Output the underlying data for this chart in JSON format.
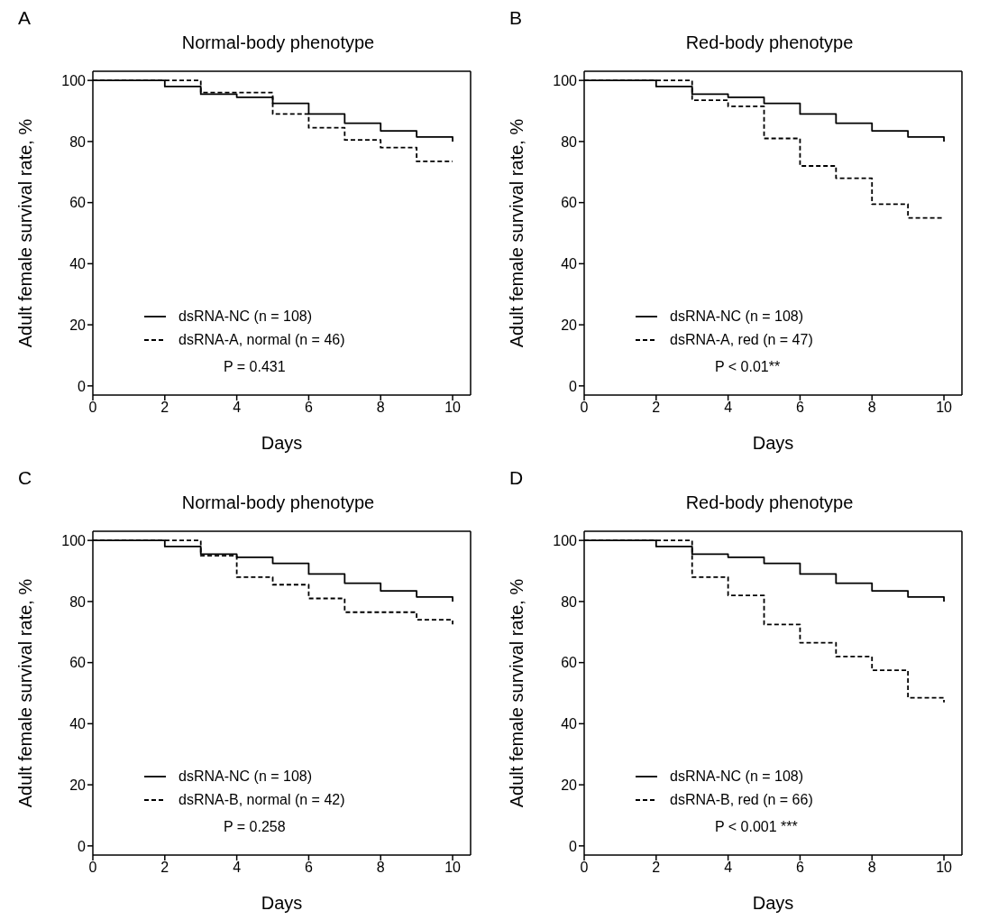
{
  "chart_data": [
    {
      "type": "step",
      "title": "Normal-body phenotype",
      "xlabel": "Days",
      "ylabel": "Adult female survival rate, %",
      "annotations": [
        "A",
        "P = 0.431"
      ],
      "x": [
        0,
        1,
        2,
        3,
        4,
        5,
        6,
        7,
        8,
        9,
        10
      ],
      "xlim": [
        0,
        10.5
      ],
      "xticks": [
        0,
        2,
        4,
        6,
        8,
        10
      ],
      "ylim": [
        -3,
        103
      ],
      "yticks": [
        0,
        20,
        40,
        60,
        80,
        100
      ],
      "grid": false,
      "legend": "bottom",
      "marker": "none",
      "series": [
        {
          "name": "dsRNA-NC (n = 108)",
          "color": "#000000",
          "line_style": "solid",
          "values": [
            100,
            100,
            98,
            95.5,
            94.5,
            92.5,
            89,
            86,
            83.5,
            81.5,
            80
          ]
        },
        {
          "name": "dsRNA-A, normal (n = 46)",
          "color": "#000000",
          "line_style": "dashed",
          "values": [
            100,
            100,
            100,
            96,
            96,
            89,
            84.5,
            80.5,
            78,
            73.5,
            73.5
          ]
        }
      ]
    },
    {
      "type": "step",
      "title": "Red-body phenotype",
      "xlabel": "Days",
      "ylabel": "Adult female survival rate, %",
      "annotations": [
        "B",
        "P < 0.01**"
      ],
      "x": [
        0,
        1,
        2,
        3,
        4,
        5,
        6,
        7,
        8,
        9,
        10
      ],
      "xlim": [
        0,
        10.5
      ],
      "xticks": [
        0,
        2,
        4,
        6,
        8,
        10
      ],
      "ylim": [
        -3,
        103
      ],
      "yticks": [
        0,
        20,
        40,
        60,
        80,
        100
      ],
      "grid": false,
      "legend": "bottom",
      "marker": "none",
      "series": [
        {
          "name": "dsRNA-NC (n = 108)",
          "color": "#000000",
          "line_style": "solid",
          "values": [
            100,
            100,
            98,
            95.5,
            94.5,
            92.5,
            89,
            86,
            83.5,
            81.5,
            80
          ]
        },
        {
          "name": "dsRNA-A, red (n = 47)",
          "color": "#000000",
          "line_style": "dashed",
          "values": [
            100,
            100,
            100,
            93.5,
            91.5,
            81,
            72,
            68,
            59.5,
            55,
            55
          ]
        }
      ]
    },
    {
      "type": "step",
      "title": "Normal-body phenotype",
      "xlabel": "Days",
      "ylabel": "Adult female survival rate, %",
      "annotations": [
        "C",
        "P = 0.258"
      ],
      "x": [
        0,
        1,
        2,
        3,
        4,
        5,
        6,
        7,
        8,
        9,
        10
      ],
      "xlim": [
        0,
        10.5
      ],
      "xticks": [
        0,
        2,
        4,
        6,
        8,
        10
      ],
      "ylim": [
        -3,
        103
      ],
      "yticks": [
        0,
        20,
        40,
        60,
        80,
        100
      ],
      "grid": false,
      "legend": "bottom",
      "marker": "none",
      "series": [
        {
          "name": "dsRNA-NC (n = 108)",
          "color": "#000000",
          "line_style": "solid",
          "values": [
            100,
            100,
            98,
            95.5,
            94.5,
            92.5,
            89,
            86,
            83.5,
            81.5,
            80
          ]
        },
        {
          "name": "dsRNA-B, normal (n = 42)",
          "color": "#000000",
          "line_style": "dashed",
          "values": [
            100,
            100,
            100,
            95,
            88,
            85.5,
            81,
            76.5,
            76.5,
            74,
            72.5
          ]
        }
      ]
    },
    {
      "type": "step",
      "title": "Red-body phenotype",
      "xlabel": "Days",
      "ylabel": "Adult female survival rate, %",
      "annotations": [
        "D",
        "P < 0.001 ***"
      ],
      "x": [
        0,
        1,
        2,
        3,
        4,
        5,
        6,
        7,
        8,
        9,
        10
      ],
      "xlim": [
        0,
        10.5
      ],
      "xticks": [
        0,
        2,
        4,
        6,
        8,
        10
      ],
      "ylim": [
        -3,
        103
      ],
      "yticks": [
        0,
        20,
        40,
        60,
        80,
        100
      ],
      "grid": false,
      "legend": "bottom",
      "marker": "none",
      "series": [
        {
          "name": "dsRNA-NC (n = 108)",
          "color": "#000000",
          "line_style": "solid",
          "values": [
            100,
            100,
            98,
            95.5,
            94.5,
            92.5,
            89,
            86,
            83.5,
            81.5,
            80
          ]
        },
        {
          "name": "dsRNA-B, red (n = 66)",
          "color": "#000000",
          "line_style": "dashed",
          "values": [
            100,
            100,
            100,
            88,
            82,
            72.5,
            66.5,
            62,
            57.5,
            48.5,
            47
          ]
        }
      ]
    }
  ]
}
